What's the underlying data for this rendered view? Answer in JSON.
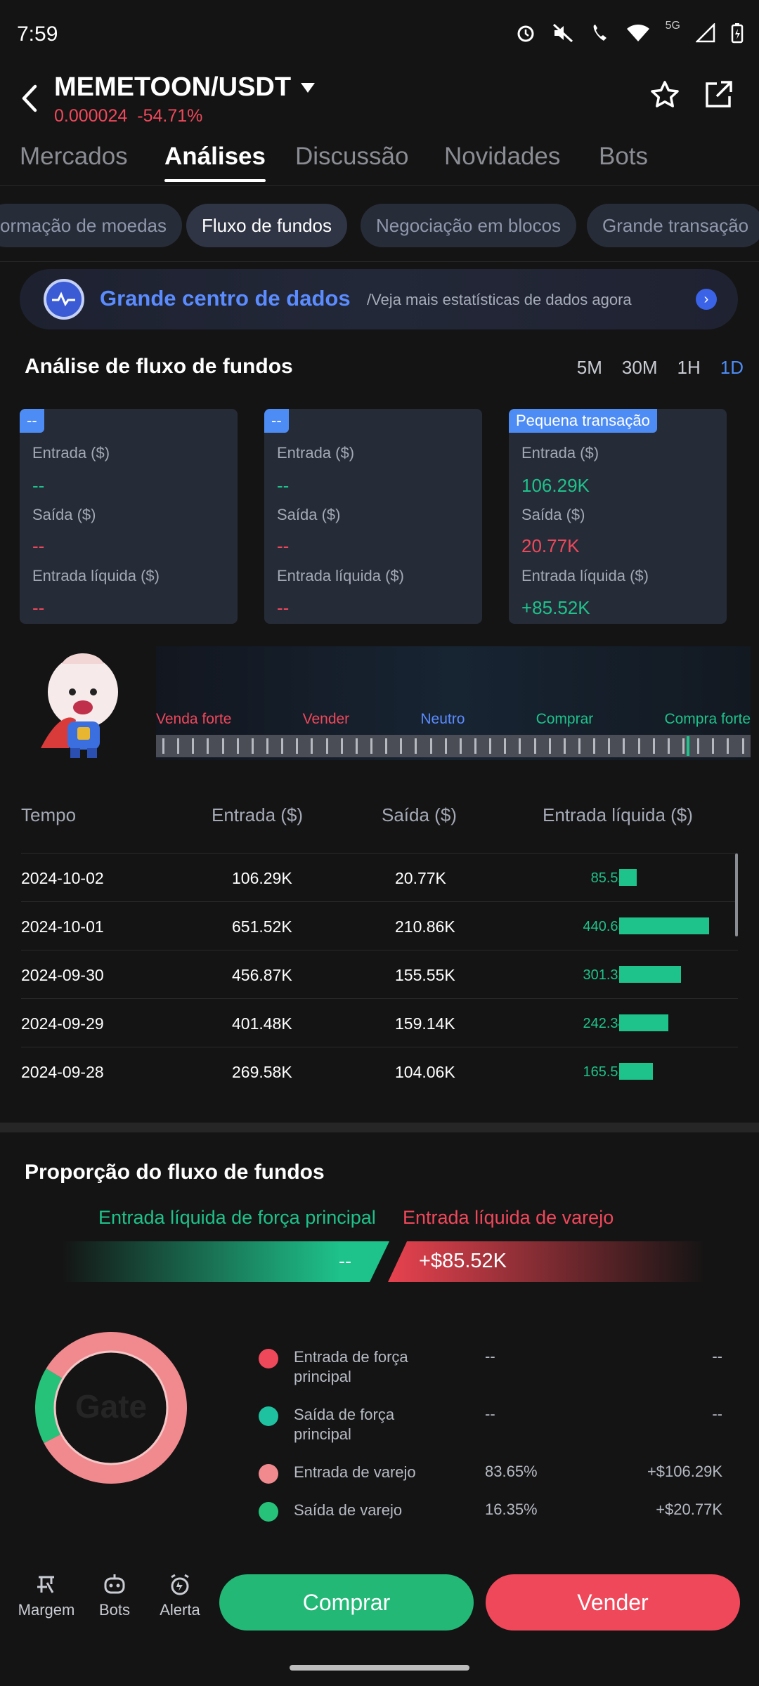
{
  "status_bar": {
    "time": "7:59",
    "network": "5G"
  },
  "header": {
    "pair": "MEMETOON/USDT",
    "price": "0.000024",
    "change": "-54.71%"
  },
  "tabs": [
    "Mercados",
    "Análises",
    "Discussão",
    "Novidades",
    "Bots"
  ],
  "active_tab": "Análises",
  "subtabs": [
    "ormação de moedas",
    "Fluxo de fundos",
    "Negociação em blocos",
    "Grande transação"
  ],
  "active_subtab": "Fluxo de fundos",
  "banner": {
    "title": "Grande centro de dados",
    "subtitle": "/Veja mais estatísticas de dados agora"
  },
  "fund_flow": {
    "title": "Análise de fluxo de fundos",
    "periods": [
      "5M",
      "30M",
      "1H",
      "1D"
    ],
    "active_period": "1D",
    "cards": [
      {
        "tag": "--",
        "inflow_label": "Entrada ($)",
        "inflow": "--",
        "outflow_label": "Saída ($)",
        "outflow": "--",
        "net_label": "Entrada líquida ($)",
        "net": "--"
      },
      {
        "tag": "--",
        "inflow_label": "Entrada ($)",
        "inflow": "--",
        "outflow_label": "Saída ($)",
        "outflow": "--",
        "net_label": "Entrada líquida ($)",
        "net": "--"
      },
      {
        "tag": "Pequena transação",
        "inflow_label": "Entrada ($)",
        "inflow": "106.29K",
        "outflow_label": "Saída ($)",
        "outflow": "20.77K",
        "net_label": "Entrada líquida ($)",
        "net": "+85.52K"
      }
    ]
  },
  "sentiment": {
    "labels": [
      "Venda forte",
      "Vender",
      "Neutro",
      "Comprar",
      "Compra forte"
    ],
    "label_colors": [
      "#f0485b",
      "#f0485b",
      "#5b8cff",
      "#1ec28b",
      "#1ec28b"
    ]
  },
  "table": {
    "headers": [
      "Tempo",
      "Entrada ($)",
      "Saída ($)",
      "Entrada líquida ($)"
    ],
    "rows": [
      {
        "date": "2024-10-02",
        "inflow": "106.29K",
        "outflow": "20.77K",
        "net": "85.52K",
        "net_value": 85.52
      },
      {
        "date": "2024-10-01",
        "inflow": "651.52K",
        "outflow": "210.86K",
        "net": "440.65K",
        "net_value": 440.65
      },
      {
        "date": "2024-09-30",
        "inflow": "456.87K",
        "outflow": "155.55K",
        "net": "301.32K",
        "net_value": 301.32
      },
      {
        "date": "2024-09-29",
        "inflow": "401.48K",
        "outflow": "159.14K",
        "net": "242.34K",
        "net_value": 242.34
      },
      {
        "date": "2024-09-28",
        "inflow": "269.58K",
        "outflow": "104.06K",
        "net": "165.52K",
        "net_value": 165.52
      }
    ]
  },
  "proportion": {
    "title": "Proporção do fluxo de fundos",
    "main_label": "Entrada líquida de força principal",
    "retail_label": "Entrada líquida de varejo",
    "main_value": "--",
    "retail_value": "+$85.52K",
    "donut": {
      "retail_inflow_pct": 83.65,
      "retail_outflow_pct": 16.35
    },
    "watermark": "Gate",
    "legend": [
      {
        "name": "Entrada de força principal",
        "pct": "--",
        "amount": "--",
        "color": "#f0485b"
      },
      {
        "name": "Saída de força principal",
        "pct": "--",
        "amount": "--",
        "color": "#1ec2a0"
      },
      {
        "name": "Entrada de varejo",
        "pct": "83.65%",
        "amount": "+$106.29K",
        "color": "#f08a8f"
      },
      {
        "name": "Saída de varejo",
        "pct": "16.35%",
        "amount": "+$20.77K",
        "color": "#27c27a"
      }
    ]
  },
  "bottom_nav": {
    "items": [
      "Margem",
      "Bots",
      "Alerta"
    ],
    "buy": "Comprar",
    "sell": "Vender"
  },
  "colors": {
    "green": "#1ec28b",
    "red": "#f0485b",
    "accent": "#4e8cf5",
    "background": "#141414"
  }
}
